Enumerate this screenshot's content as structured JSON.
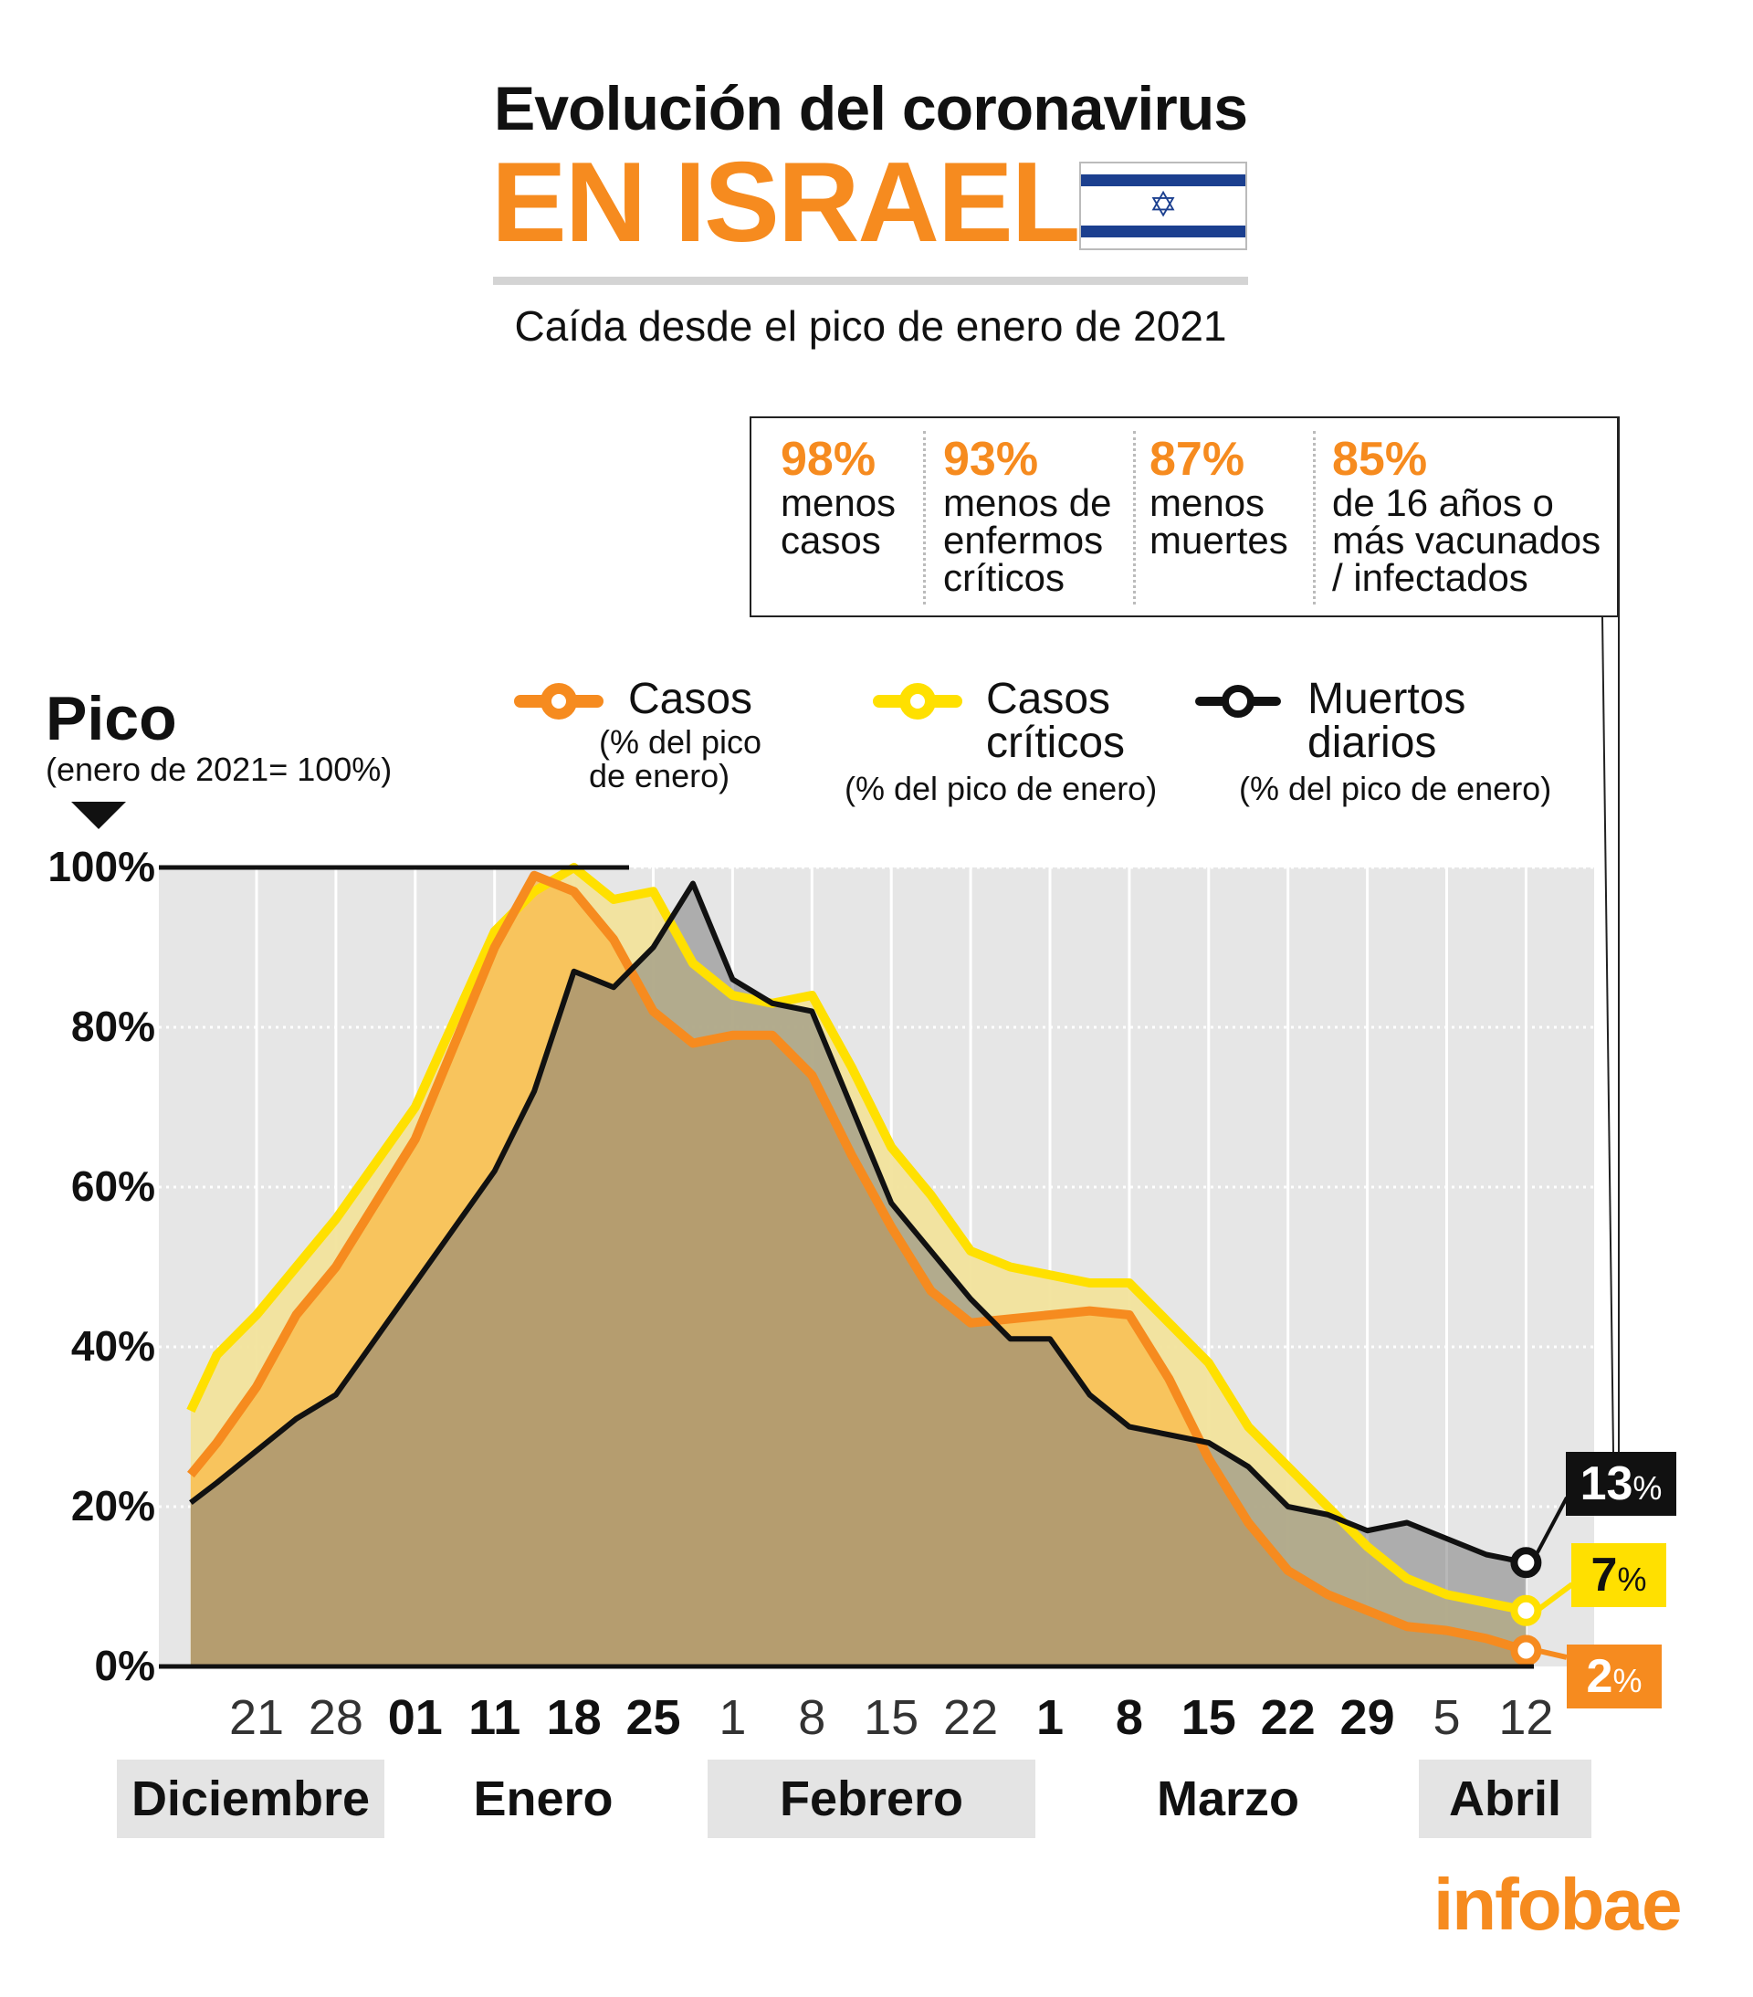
{
  "header": {
    "title_line1": "Evolución del coronavirus",
    "title_line2": "EN ISRAEL",
    "subtitle": "Caída desde el pico de enero de 2021",
    "flag_icon": "israel-flag"
  },
  "stats": [
    {
      "pct": "98%",
      "lines": [
        "menos",
        "casos"
      ]
    },
    {
      "pct": "93%",
      "lines": [
        "menos de",
        "enfermos",
        "críticos"
      ]
    },
    {
      "pct": "87%",
      "lines": [
        "menos",
        "muertes"
      ]
    },
    {
      "pct": "85%",
      "lines": [
        "de 16 años o",
        "más vacunados",
        "/ infectados"
      ]
    }
  ],
  "pico": {
    "label": "Pico",
    "sublabel": "(enero de 2021= 100%)"
  },
  "legend": [
    {
      "name": "Casos",
      "sub": [
        "(% del pico",
        "de enero)"
      ],
      "color": "#f68b1f"
    },
    {
      "name": "Casos",
      "name2": "críticos",
      "sub": [
        "(% del pico de enero)"
      ],
      "color": "#ffe000"
    },
    {
      "name": "Muertos",
      "name2": "diarios",
      "sub": [
        "(% del pico de enero)"
      ],
      "color": "#111111"
    }
  ],
  "chart_data": {
    "type": "area",
    "title": "Evolución del coronavirus en Israel",
    "ylabel": "Pico (enero de 2021= 100%)",
    "ylim": [
      0,
      100
    ],
    "yticks": [
      "0%",
      "20%",
      "40%",
      "60%",
      "80%",
      "100%"
    ],
    "ytick_values": [
      0,
      20,
      40,
      60,
      80,
      100
    ],
    "xticks": [
      {
        "label": "21",
        "bold": false
      },
      {
        "label": "28",
        "bold": false
      },
      {
        "label": "01",
        "bold": true
      },
      {
        "label": "11",
        "bold": true
      },
      {
        "label": "18",
        "bold": true
      },
      {
        "label": "25",
        "bold": true
      },
      {
        "label": "1",
        "bold": false
      },
      {
        "label": "8",
        "bold": false
      },
      {
        "label": "15",
        "bold": false
      },
      {
        "label": "22",
        "bold": false
      },
      {
        "label": "1",
        "bold": true
      },
      {
        "label": "8",
        "bold": true
      },
      {
        "label": "15",
        "bold": true
      },
      {
        "label": "22",
        "bold": true
      },
      {
        "label": "29",
        "bold": true
      },
      {
        "label": "5",
        "bold": false
      },
      {
        "label": "12",
        "bold": false
      }
    ],
    "months": [
      {
        "label": "Diciembre",
        "shaded": true
      },
      {
        "label": "Enero",
        "shaded": false
      },
      {
        "label": "Febrero",
        "shaded": true
      },
      {
        "label": "Marzo",
        "shaded": false
      },
      {
        "label": "Abril",
        "shaded": true
      }
    ],
    "x_tick_index": [
      -0.83,
      -0.5,
      0,
      0.5,
      1,
      1.5,
      2,
      2.5,
      3,
      3.5,
      4,
      4.5,
      5,
      5.5,
      6,
      6.5,
      7,
      7.5,
      8,
      8.5,
      9,
      9.5,
      10,
      10.5,
      11,
      11.5,
      12,
      12.5,
      13,
      13.5,
      14,
      14.5,
      15,
      15.5,
      16
    ],
    "series": [
      {
        "name": "Casos críticos",
        "color": "#ffe000",
        "fill": "#f2e39c",
        "end_label": "7",
        "end_unit": "%",
        "values": [
          32,
          39,
          44,
          50,
          56,
          63,
          70,
          81,
          92,
          97,
          100,
          96,
          97,
          88,
          84,
          83,
          84,
          75,
          65,
          59,
          52,
          50,
          49,
          48,
          48,
          43,
          38,
          30,
          25,
          20,
          15,
          11,
          9,
          8,
          7
        ]
      },
      {
        "name": "Casos",
        "color": "#f68b1f",
        "fill": "#f9bb4c",
        "end_label": "2",
        "end_unit": "%",
        "values": [
          24,
          28,
          35,
          44,
          50,
          58,
          66,
          78,
          90,
          99,
          97,
          91,
          82,
          78,
          79,
          79,
          74,
          64,
          55,
          47,
          43,
          43.5,
          44,
          44.5,
          44,
          36,
          26,
          18,
          12,
          9,
          7,
          5,
          4.5,
          3.5,
          2
        ]
      },
      {
        "name": "Muertos diarios",
        "color": "#111111",
        "fill": "#7d7d7d",
        "end_label": "13",
        "end_unit": "%",
        "values": [
          20.5,
          23,
          27,
          31,
          34,
          41,
          48,
          55,
          62,
          72,
          87,
          85,
          90,
          98,
          86,
          83,
          82,
          70,
          58,
          52,
          46,
          41,
          41,
          34,
          30,
          29,
          28,
          25,
          20,
          19,
          17,
          18,
          16,
          14,
          13
        ]
      }
    ]
  },
  "logo": "infobae"
}
